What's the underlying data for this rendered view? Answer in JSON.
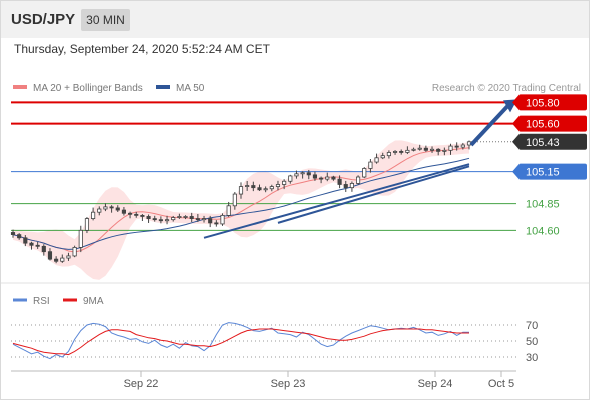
{
  "header": {
    "symbol": "USD/JPY",
    "timeframe": "30 MIN"
  },
  "datetime": "Thursday, September 24, 2020 5:52:24 AM CET",
  "colors": {
    "bollinger": "#f08080",
    "bollinger_band_fill": "#fde3e3",
    "ma50": "#2e5597",
    "resistance": "#dd0000",
    "support": "#3e77d2",
    "target": "#44a244",
    "current": "#333333",
    "rsi": "#5b87d6",
    "rsi_ma": "#e31a1c",
    "candle": "#444444",
    "arrow": "#2e5597"
  },
  "chart_data": [
    {
      "type": "candlestick",
      "title": "",
      "legend": [
        {
          "name": "MA 20 + Bollinger Bands",
          "color": "#f08080"
        },
        {
          "name": "MA 50",
          "color": "#2e5597"
        }
      ],
      "legend_position": "top-left",
      "copyright": "Research © 2020 Trading Central",
      "x_tick_labels": [
        "Sep 22",
        "Sep 23",
        "Sep 24",
        "Oct 5"
      ],
      "ylim": [
        104.2,
        105.85
      ],
      "levels": [
        {
          "label": "105.80",
          "value": 105.8,
          "kind": "resistance",
          "color": "#dd0000"
        },
        {
          "label": "105.60",
          "value": 105.6,
          "kind": "resistance",
          "color": "#dd0000"
        },
        {
          "label": "105.43",
          "value": 105.43,
          "kind": "current",
          "color": "#333333"
        },
        {
          "label": "105.15",
          "value": 105.15,
          "kind": "pivot",
          "color": "#3e77d2"
        },
        {
          "label": "104.85",
          "value": 104.85,
          "kind": "support",
          "color": "#44a244"
        },
        {
          "label": "104.60",
          "value": 104.6,
          "kind": "support",
          "color": "#44a244"
        }
      ],
      "close_series": [
        104.56,
        104.53,
        104.48,
        104.46,
        104.45,
        104.4,
        104.33,
        104.31,
        104.34,
        104.36,
        104.44,
        104.6,
        104.71,
        104.77,
        104.8,
        104.82,
        104.81,
        104.79,
        104.76,
        104.75,
        104.74,
        104.73,
        104.71,
        104.7,
        104.69,
        104.7,
        104.72,
        104.73,
        104.73,
        104.71,
        104.7,
        104.71,
        104.67,
        104.66,
        104.74,
        104.83,
        104.94,
        105.01,
        105.02,
        105.0,
        104.98,
        104.99,
        105.01,
        105.03,
        105.06,
        105.11,
        105.13,
        105.14,
        105.12,
        105.09,
        105.08,
        105.1,
        105.08,
        105.03,
        105.0,
        105.04,
        105.1,
        105.18,
        105.24,
        105.28,
        105.3,
        105.33,
        105.34,
        105.33,
        105.35,
        105.36,
        105.37,
        105.35,
        105.36,
        105.34,
        105.35,
        105.39,
        105.38,
        105.4,
        105.43
      ],
      "trendlines": [
        {
          "from": {
            "x": "Sep 22 15:30",
            "y": 104.53
          },
          "to": {
            "x": "Sep 24 05:30",
            "y": 105.22
          }
        },
        {
          "from": {
            "x": "Sep 23 05:00",
            "y": 104.67
          },
          "to": {
            "x": "Sep 24 05:30",
            "y": 105.2
          }
        }
      ],
      "projection": {
        "from": 105.4,
        "to": 105.8
      }
    },
    {
      "type": "line",
      "title": "",
      "legend": [
        {
          "name": "RSI",
          "color": "#5b87d6"
        },
        {
          "name": "9MA",
          "color": "#e31a1c"
        }
      ],
      "ylim": [
        20,
        80
      ],
      "y_ticks": [
        "70",
        "50",
        "30"
      ],
      "series": [
        {
          "name": "RSI",
          "values": [
            46,
            42,
            38,
            34,
            36,
            31,
            28,
            33,
            30,
            37,
            52,
            63,
            70,
            72,
            71,
            68,
            60,
            57,
            55,
            52,
            53,
            49,
            47,
            51,
            45,
            42,
            46,
            41,
            48,
            44,
            43,
            38,
            44,
            58,
            70,
            73,
            72,
            70,
            67,
            63,
            62,
            64,
            66,
            60,
            59,
            58,
            55,
            61,
            58,
            52,
            46,
            43,
            45,
            51,
            56,
            60,
            63,
            66,
            69,
            68,
            66,
            64,
            65,
            66,
            65,
            67,
            64,
            60,
            61,
            57,
            59,
            62,
            57,
            61,
            61
          ]
        },
        {
          "name": "9MA",
          "values": [
            47,
            45,
            43,
            41,
            38,
            36,
            35,
            34,
            34,
            33,
            37,
            42,
            48,
            53,
            58,
            62,
            64,
            64,
            63,
            62,
            58,
            56,
            54,
            53,
            51,
            50,
            48,
            46,
            46,
            45,
            44,
            44,
            43,
            45,
            48,
            52,
            56,
            60,
            63,
            64,
            65,
            65,
            65,
            64,
            63,
            62,
            61,
            60,
            59,
            57,
            55,
            53,
            52,
            51,
            51,
            52,
            54,
            56,
            59,
            61,
            63,
            64,
            65,
            65,
            65,
            65,
            65,
            64,
            64,
            63,
            62,
            61,
            60,
            60,
            60
          ]
        }
      ]
    }
  ]
}
